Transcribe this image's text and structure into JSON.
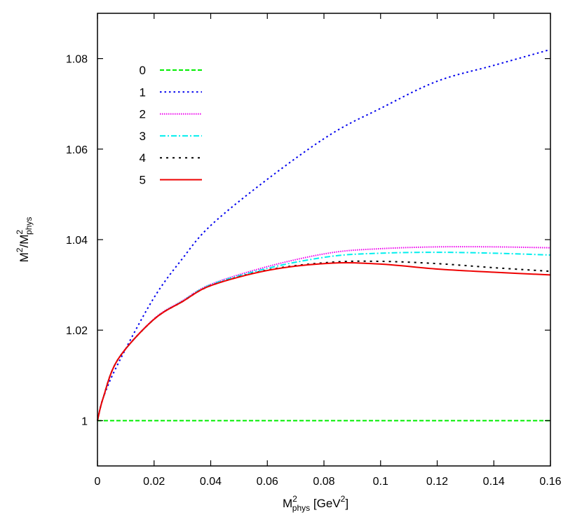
{
  "chart_data": {
    "type": "line",
    "xlabel": {
      "base": "M",
      "sup": "2",
      "sub": "phys",
      "rest": " [GeV",
      "sup2": "2",
      "end": "]"
    },
    "ylabel": {
      "a": "M",
      "a_sup": "2",
      "slash": "/M",
      "b_sup": "2",
      "b_sub": "phys"
    },
    "xlim": [
      0,
      0.16
    ],
    "ylim": [
      0.99,
      1.09
    ],
    "xticks": [
      "0",
      "0.02",
      "0.04",
      "0.06",
      "0.08",
      "0.1",
      "0.12",
      "0.14",
      "0.16"
    ],
    "yticks": [
      "1",
      "1.02",
      "1.04",
      "1.06",
      "1.08"
    ],
    "grid": false,
    "legend_position": "top-left",
    "x": [
      0,
      0.002,
      0.0072,
      0.0196,
      0.03,
      0.0403,
      0.061,
      0.0825,
      0.1,
      0.12,
      0.14,
      0.16
    ],
    "series": [
      {
        "name": "0",
        "color": "#00ee00",
        "dash": "dashed",
        "values": [
          1,
          1,
          1,
          1,
          1,
          1,
          1,
          1,
          1,
          1,
          1,
          1
        ]
      },
      {
        "name": "1",
        "color": "#0000ee",
        "dash": "dotted",
        "values": [
          1,
          1.005,
          1.0125,
          1.0268,
          1.0358,
          1.0433,
          1.0538,
          1.0633,
          1.069,
          1.075,
          1.0785,
          1.082
        ]
      },
      {
        "name": "2",
        "color": "#ee00ee",
        "dash": "fine-dotted",
        "values": [
          1,
          1.005,
          1.0135,
          1.0223,
          1.0265,
          1.0302,
          1.0342,
          1.0371,
          1.038,
          1.0384,
          1.0384,
          1.0382
        ]
      },
      {
        "name": "3",
        "color": "#00eeee",
        "dash": "dash-dot",
        "values": [
          1,
          1.005,
          1.0135,
          1.0222,
          1.0264,
          1.0301,
          1.0338,
          1.0363,
          1.037,
          1.0372,
          1.037,
          1.0366
        ]
      },
      {
        "name": "4",
        "color": "#000000",
        "dash": "dotted-sparse",
        "values": [
          1,
          1.005,
          1.0135,
          1.0222,
          1.0263,
          1.0299,
          1.0334,
          1.035,
          1.0352,
          1.0347,
          1.0338,
          1.033
        ]
      },
      {
        "name": "5",
        "color": "#ee0000",
        "dash": "solid",
        "values": [
          1,
          1.005,
          1.0135,
          1.0222,
          1.0263,
          1.0299,
          1.0333,
          1.0348,
          1.0346,
          1.0335,
          1.0328,
          1.0322
        ]
      }
    ]
  }
}
